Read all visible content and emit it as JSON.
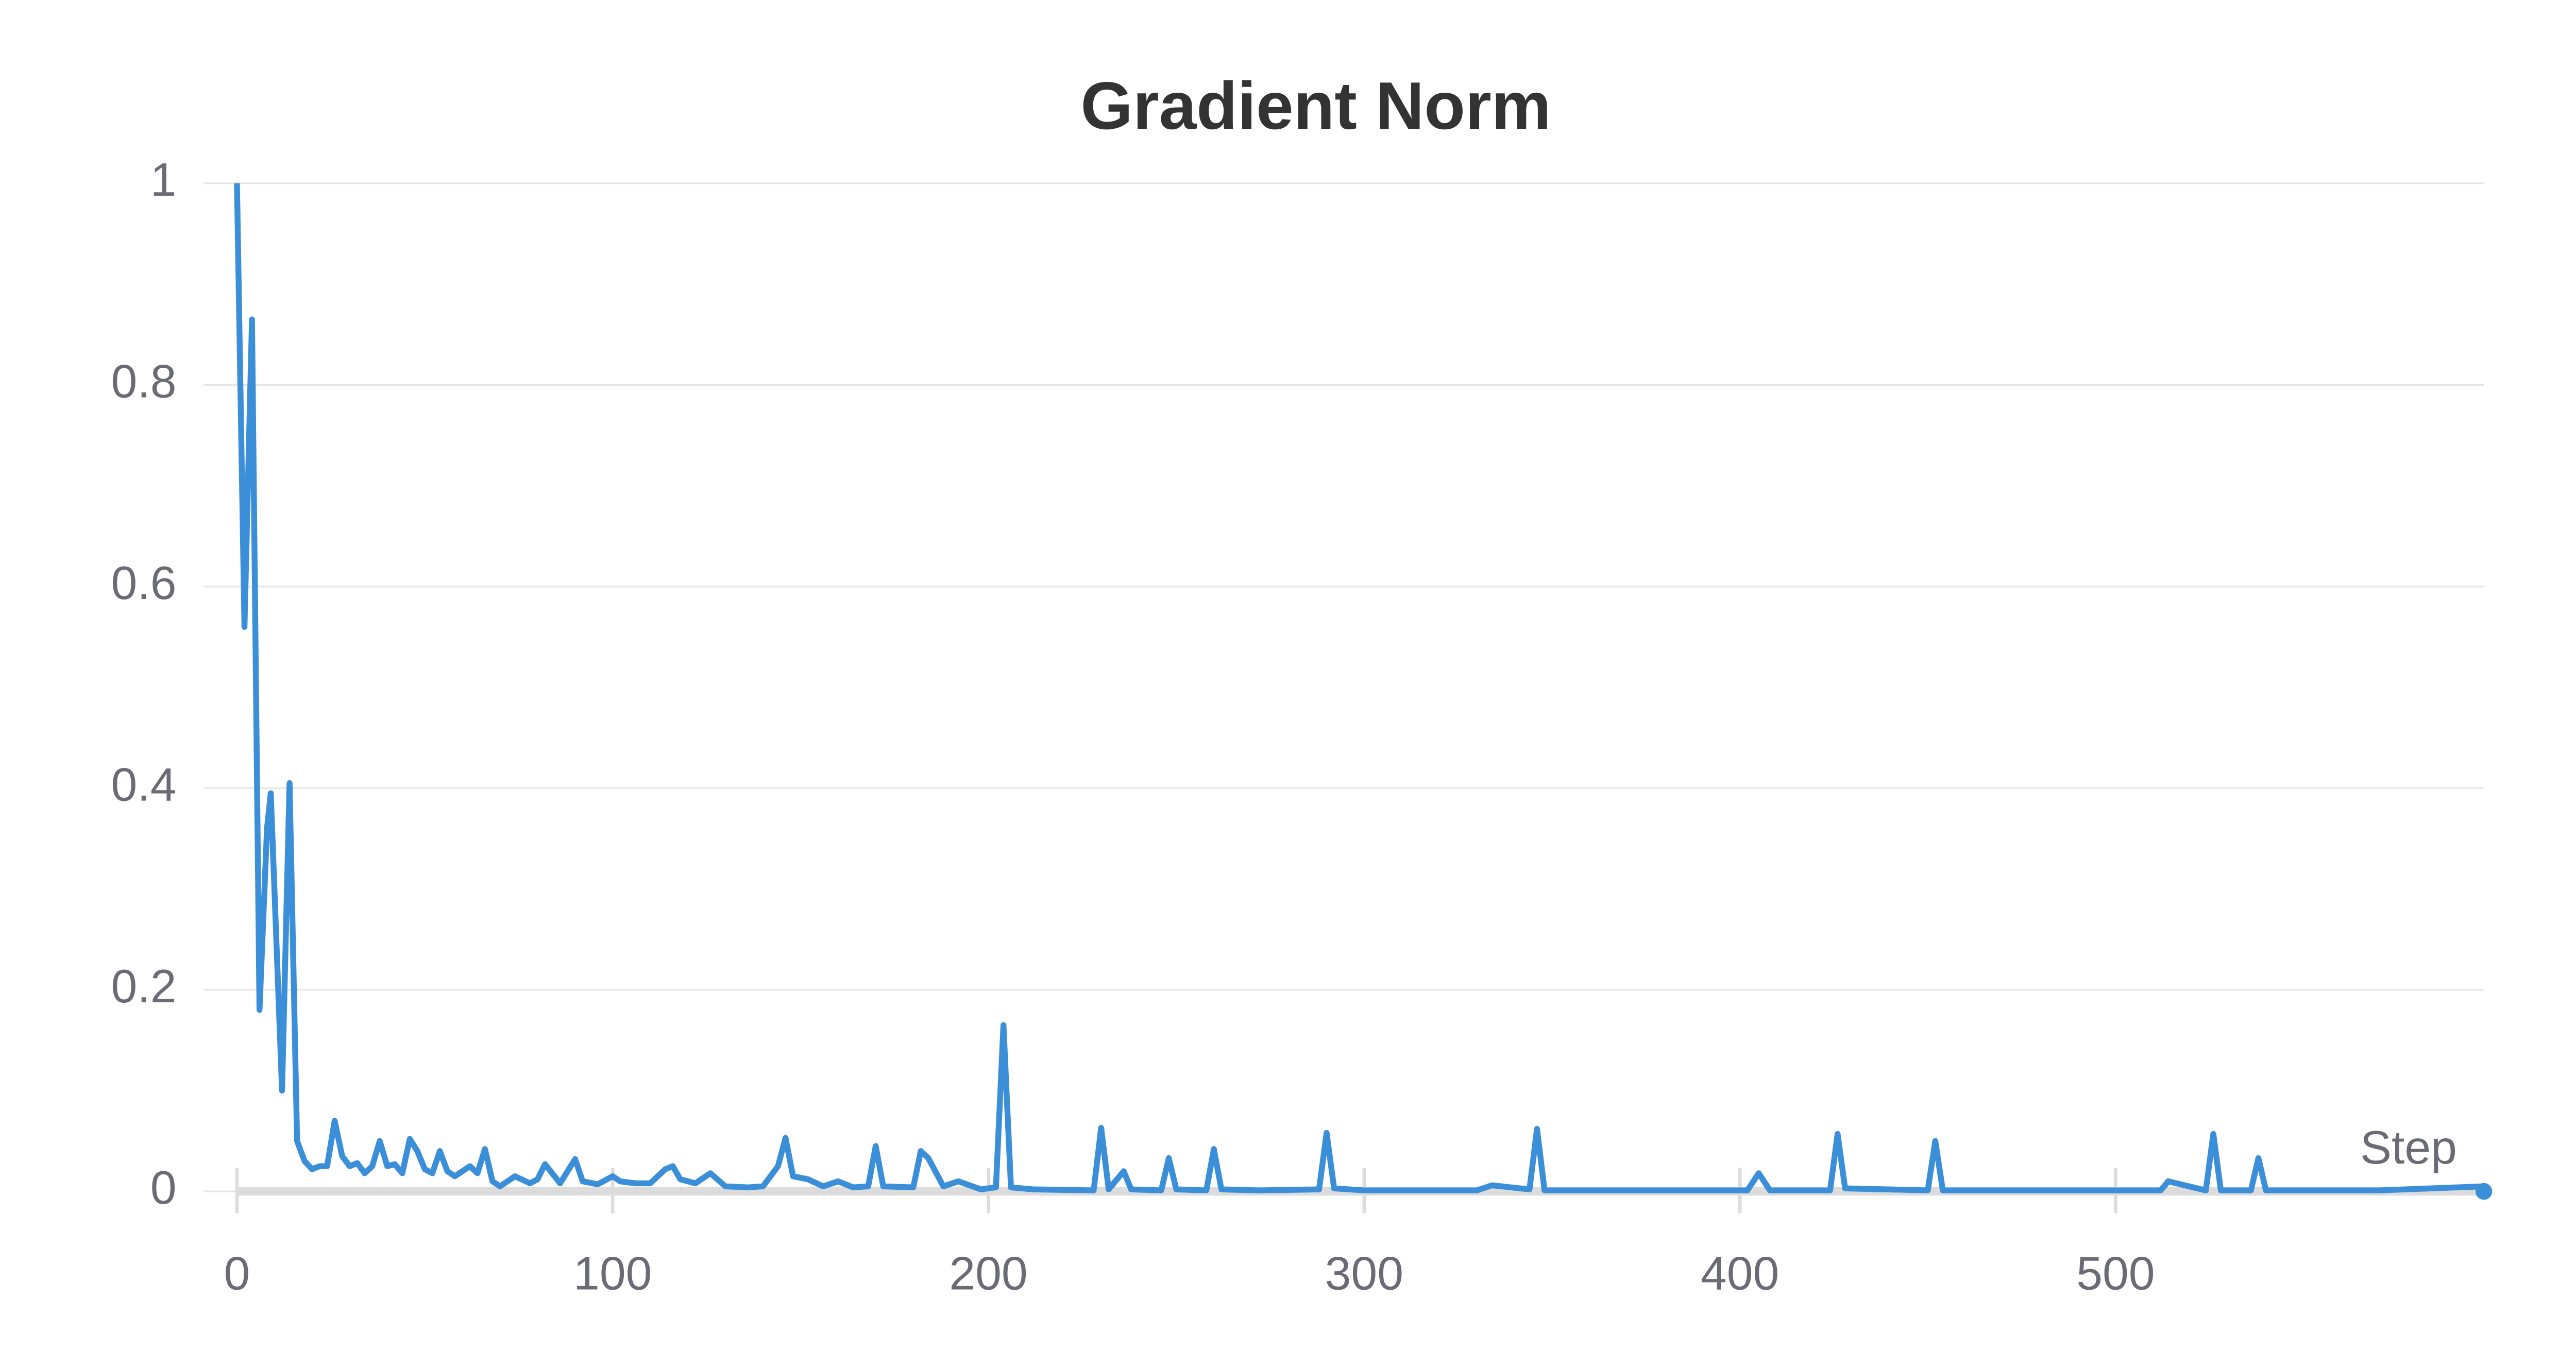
{
  "chart_data": {
    "type": "line",
    "title": "Gradient Norm",
    "x_label": "Step",
    "x": [
      0,
      2,
      4,
      6,
      8,
      9,
      12,
      14,
      16,
      18,
      20,
      22,
      24,
      26,
      28,
      30,
      32,
      34,
      36,
      38,
      40,
      42,
      44,
      46,
      48,
      50,
      52,
      54,
      56,
      58,
      60,
      62,
      64,
      66,
      68,
      70,
      74,
      78,
      80,
      82,
      86,
      90,
      92,
      96,
      100,
      102,
      106,
      110,
      114,
      116,
      118,
      122,
      126,
      130,
      136,
      140,
      144,
      146,
      148,
      152,
      156,
      160,
      164,
      168,
      170,
      172,
      180,
      182,
      184,
      188,
      192,
      198,
      202,
      204,
      206,
      212,
      228,
      230,
      232,
      236,
      238,
      246,
      248,
      250,
      258,
      260,
      262,
      272,
      288,
      290,
      292,
      300,
      330,
      334,
      344,
      346,
      348,
      360,
      402,
      405,
      408,
      424,
      426,
      428,
      450,
      452,
      454,
      480,
      512,
      514,
      524,
      526,
      528,
      536,
      538,
      540,
      570,
      598
    ],
    "series": [
      {
        "name": "Gradient Norm",
        "color": "#3b8fd9",
        "values": [
          1.0,
          0.56,
          0.865,
          0.18,
          0.36,
          0.395,
          0.1,
          0.405,
          0.05,
          0.03,
          0.022,
          0.025,
          0.025,
          0.07,
          0.035,
          0.025,
          0.028,
          0.018,
          0.025,
          0.05,
          0.025,
          0.027,
          0.018,
          0.052,
          0.04,
          0.022,
          0.018,
          0.04,
          0.02,
          0.015,
          0.02,
          0.025,
          0.018,
          0.042,
          0.01,
          0.005,
          0.015,
          0.008,
          0.012,
          0.027,
          0.008,
          0.032,
          0.01,
          0.007,
          0.015,
          0.01,
          0.008,
          0.008,
          0.022,
          0.025,
          0.012,
          0.008,
          0.018,
          0.005,
          0.004,
          0.005,
          0.025,
          0.053,
          0.015,
          0.012,
          0.005,
          0.01,
          0.004,
          0.005,
          0.045,
          0.005,
          0.004,
          0.04,
          0.033,
          0.005,
          0.01,
          0.002,
          0.004,
          0.165,
          0.004,
          0.002,
          0.001,
          0.063,
          0.002,
          0.02,
          0.002,
          0.001,
          0.033,
          0.002,
          0.001,
          0.042,
          0.002,
          0.001,
          0.002,
          0.058,
          0.003,
          0.001,
          0.001,
          0.006,
          0.002,
          0.062,
          0.001,
          0.001,
          0.001,
          0.018,
          0.001,
          0.001,
          0.057,
          0.003,
          0.001,
          0.05,
          0.001,
          0.001,
          0.001,
          0.01,
          0.001,
          0.057,
          0.001,
          0.001,
          0.033,
          0.001,
          0.001,
          0.005
        ]
      }
    ],
    "xlim": [
      0,
      598
    ],
    "xticks": [
      0,
      100,
      200,
      300,
      400,
      500
    ],
    "ylim": [
      0,
      1
    ],
    "yticks": [
      0,
      0.2,
      0.4,
      0.6,
      0.8,
      1
    ],
    "grid": true
  }
}
